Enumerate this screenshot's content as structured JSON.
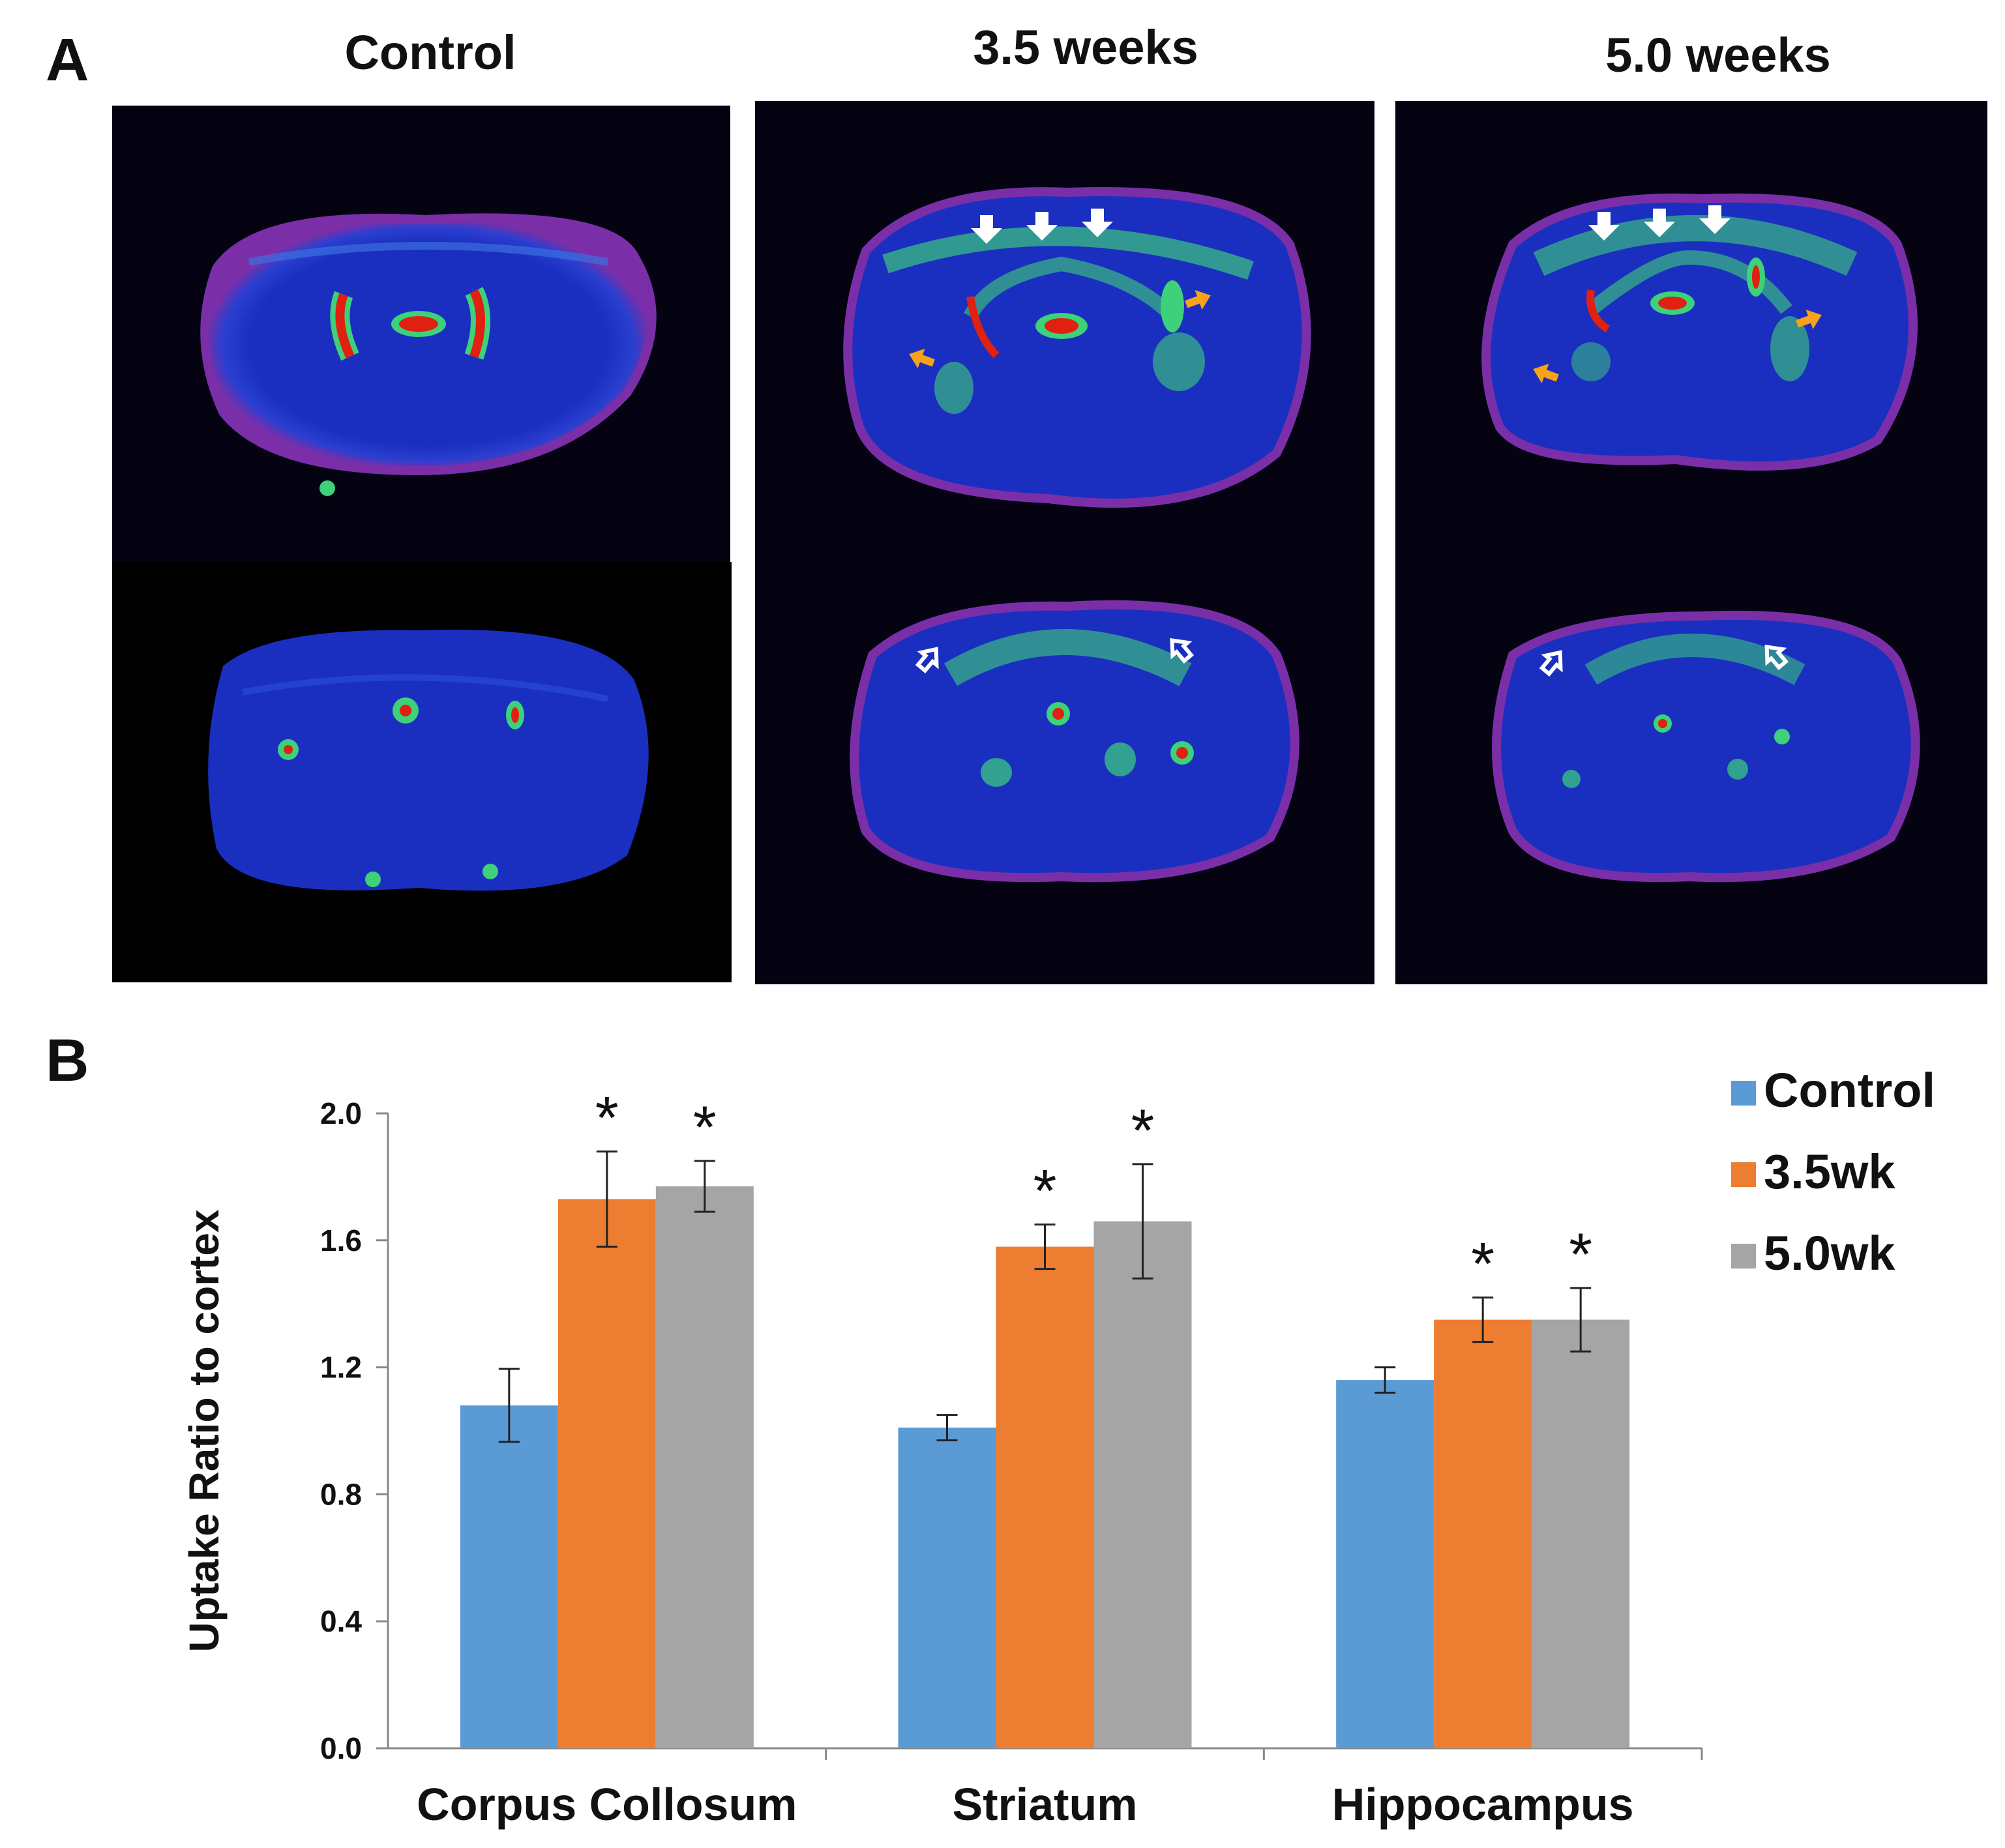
{
  "panel_a": {
    "label": "A",
    "columns": [
      {
        "title": "Control"
      },
      {
        "title": "3.5 weeks"
      },
      {
        "title": "5.0 weeks"
      }
    ]
  },
  "panel_b": {
    "label": "B"
  },
  "colors": {
    "control": "#5b9bd5",
    "wk35": "#ed7d31",
    "wk50": "#a5a5a5",
    "scan_bg": "#000000",
    "tissue_blue": "#1a2fbf",
    "rim_purple": "#7a2fa8",
    "hot_green": "#3dd17a",
    "hot_red": "#e02010",
    "arrow_white": "#ffffff",
    "arrow_orange": "#f7a21b"
  },
  "chart_data": {
    "type": "bar",
    "categories": [
      "Corpus Collosum",
      "Striatum",
      "Hippocampus"
    ],
    "series": [
      {
        "name": "Control",
        "values": [
          1.08,
          1.01,
          1.16
        ],
        "errors": [
          0.115,
          0.04,
          0.04
        ],
        "significant": [
          false,
          false,
          false
        ]
      },
      {
        "name": "3.5wk",
        "values": [
          1.73,
          1.58,
          1.35
        ],
        "errors": [
          0.15,
          0.07,
          0.07
        ],
        "significant": [
          true,
          true,
          true
        ]
      },
      {
        "name": "5.0wk",
        "values": [
          1.77,
          1.66,
          1.35
        ],
        "errors": [
          0.08,
          0.18,
          0.1
        ],
        "significant": [
          true,
          true,
          true
        ]
      }
    ],
    "xlabel": "",
    "ylabel": "Uptake Ratio to cortex",
    "ylim": [
      0,
      2.0
    ],
    "yticks": [
      "0.0",
      "0.4",
      "0.8",
      "1.2",
      "1.6",
      "2.0"
    ],
    "significance_marker": "*",
    "legend_position": "top-right",
    "grid": false
  }
}
